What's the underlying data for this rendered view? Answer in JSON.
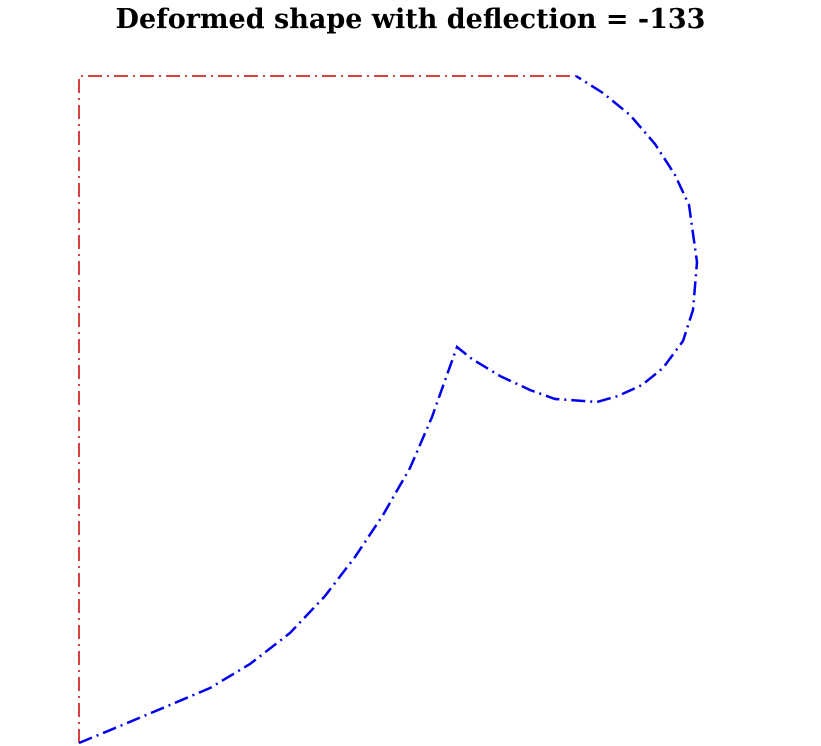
{
  "title": "Deformed shape with deflection = -133",
  "colors": {
    "reference_outline": "#cc0000",
    "deformed_outline": "#0000ee"
  },
  "line_style": "dash-dot"
}
